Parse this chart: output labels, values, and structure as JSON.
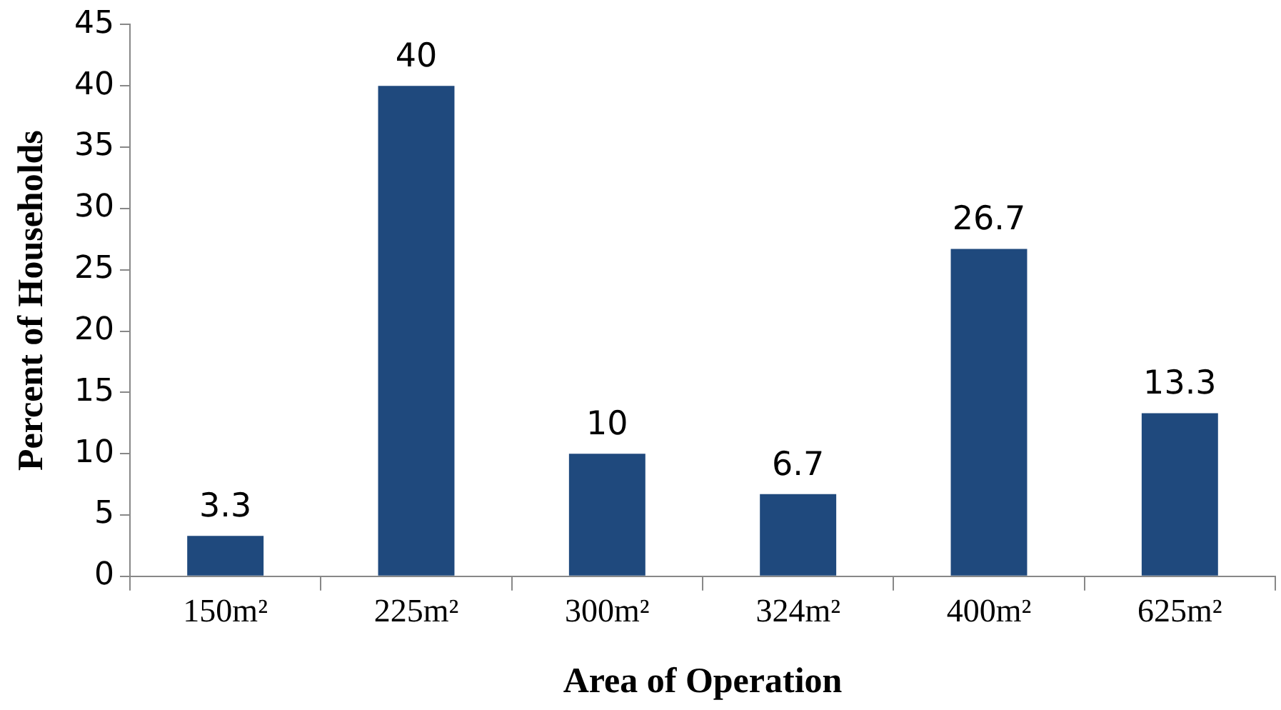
{
  "chart_data": {
    "type": "bar",
    "xlabel": "Area of Operation",
    "ylabel": "Percent of Households",
    "categories": [
      "150m²",
      "225m²",
      "300m²",
      "324m²",
      "400m²",
      "625m²"
    ],
    "values": [
      3.3,
      40,
      10,
      6.7,
      26.7,
      13.3
    ],
    "color": "#1f497d",
    "ylim": [
      0,
      45
    ],
    "yticks": [
      0,
      5,
      10,
      15,
      20,
      25,
      30,
      35,
      40,
      45
    ],
    "grid": false,
    "legend": false,
    "data_labels": true
  }
}
